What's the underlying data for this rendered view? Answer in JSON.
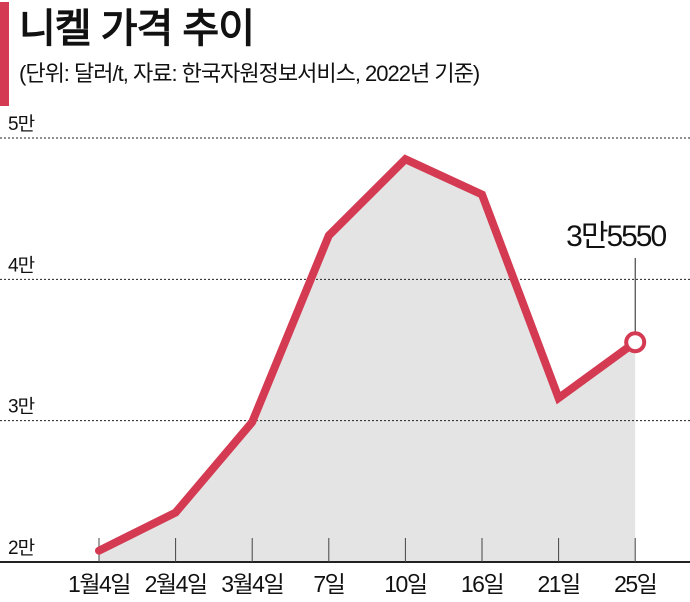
{
  "title": "니켈 가격 추이",
  "subtitle": "(단위: 달러/t, 자료: 한국자원정보서비스, 2022년 기준)",
  "colors": {
    "accent": "#d43a52",
    "area": "#e4e4e4",
    "text": "#111111"
  },
  "chart_data": {
    "type": "area",
    "title": "니켈 가격 추이",
    "categories": [
      "1월4일",
      "2월4일",
      "3월4일",
      "7일",
      "10일",
      "16일",
      "21일",
      "25일"
    ],
    "series": [
      {
        "values": [
          20800,
          23500,
          29900,
          43100,
          48500,
          46000,
          31600,
          35550
        ]
      }
    ],
    "ylim": [
      20000,
      50000
    ],
    "yticks": [
      20000,
      30000,
      40000,
      50000
    ],
    "ytick_labels": [
      "2만",
      "3만",
      "4만",
      "5만"
    ],
    "grid": "horizontal dotted",
    "annotation": {
      "category": "25일",
      "label": "3만5550"
    }
  }
}
